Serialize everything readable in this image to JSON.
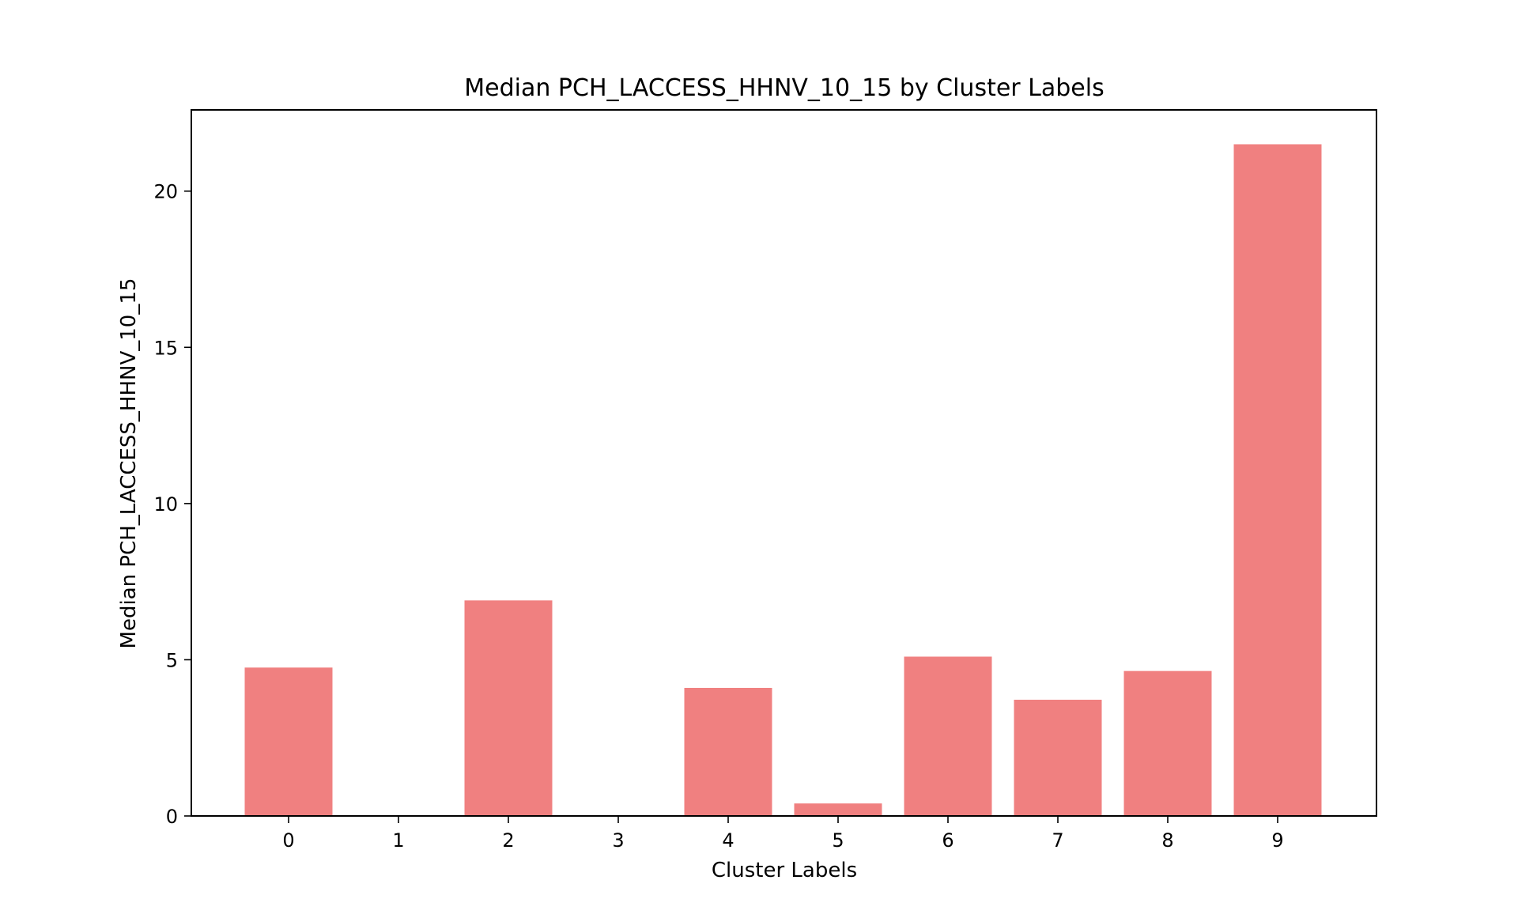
{
  "chart_data": {
    "type": "bar",
    "title": "Median PCH_LACCESS_HHNV_10_15 by Cluster Labels",
    "xlabel": "Cluster Labels",
    "ylabel": "Median PCH_LACCESS_HHNV_10_15",
    "categories": [
      "0",
      "1",
      "2",
      "3",
      "4",
      "5",
      "6",
      "7",
      "8",
      "9"
    ],
    "values": [
      4.75,
      0.0,
      6.9,
      0.0,
      4.1,
      0.4,
      5.1,
      3.72,
      4.64,
      21.5
    ],
    "ylim": [
      0,
      22.6
    ],
    "yticks": [
      0,
      5,
      10,
      15,
      20
    ],
    "grid": false,
    "legend": "none",
    "bar_color": "#f08080"
  }
}
